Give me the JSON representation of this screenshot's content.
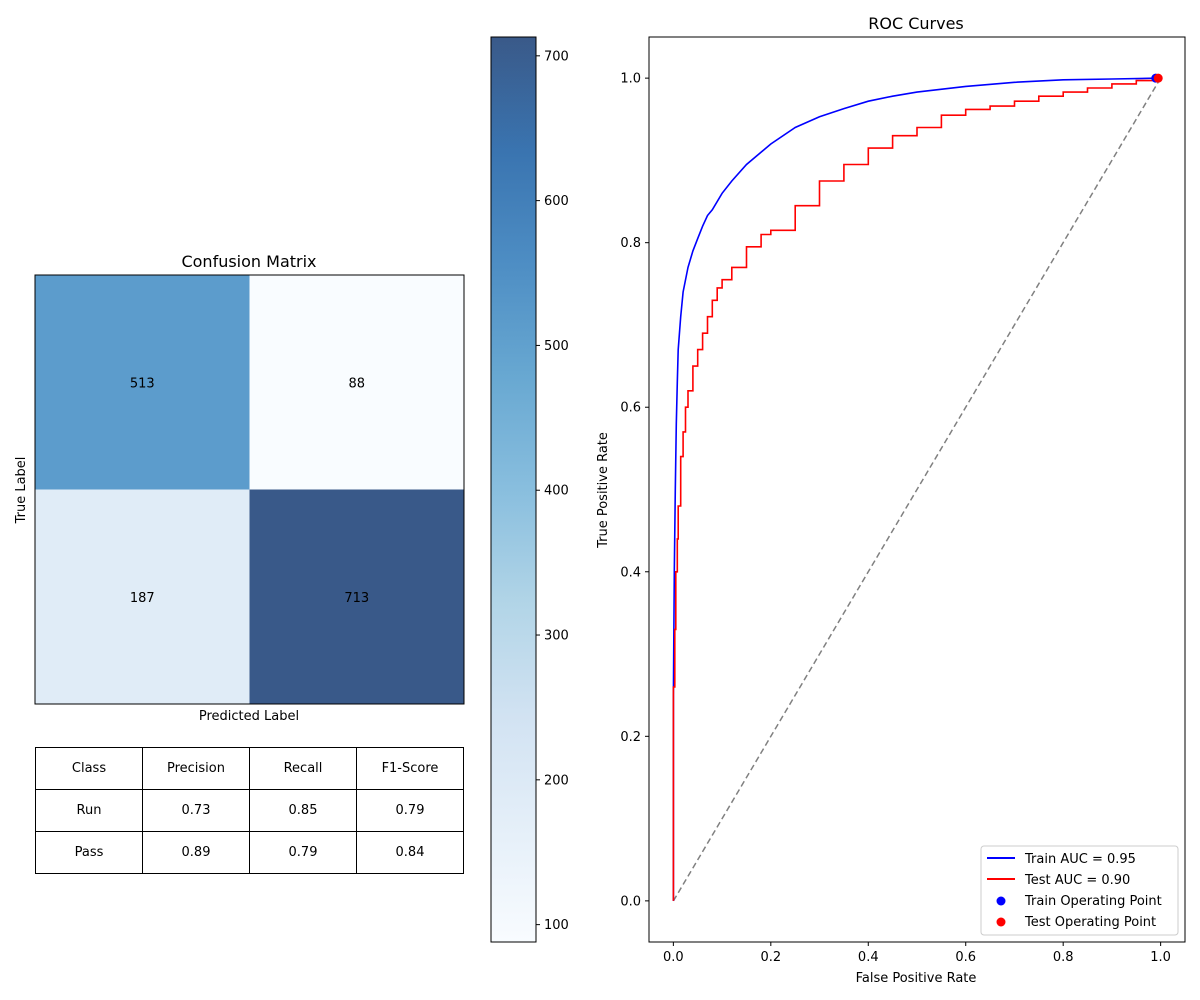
{
  "chart_data": [
    {
      "type": "heatmap",
      "title": "Confusion Matrix",
      "xlabel": "Predicted Label",
      "ylabel": "True Label",
      "matrix": [
        [
          513,
          88
        ],
        [
          187,
          713
        ]
      ],
      "colorbar": {
        "min": 88,
        "max": 713,
        "ticks": [
          100,
          200,
          300,
          400,
          500,
          600,
          700
        ]
      },
      "colormap": [
        "#f7fbff",
        "#deebf7",
        "#c6dbef",
        "#9ecae1",
        "#6baed6",
        "#4292c6",
        "#2171b5",
        "#08519c",
        "#08306b"
      ],
      "cell_alpha": 0.8,
      "metrics_table": {
        "header": [
          "Class",
          "Precision",
          "Recall",
          "F1-Score"
        ],
        "rows": [
          [
            "Run",
            "0.73",
            "0.85",
            "0.79"
          ],
          [
            "Pass",
            "0.89",
            "0.79",
            "0.84"
          ]
        ]
      }
    },
    {
      "type": "line",
      "title": "ROC Curves",
      "xlabel": "False Positive Rate",
      "ylabel": "True Positive Rate",
      "xlim": [
        -0.05,
        1.05
      ],
      "ylim": [
        -0.05,
        1.05
      ],
      "xticks": [
        "0.0",
        "0.2",
        "0.4",
        "0.6",
        "0.8",
        "1.0"
      ],
      "yticks": [
        "0.0",
        "0.2",
        "0.4",
        "0.6",
        "0.8",
        "1.0"
      ],
      "grid": false,
      "legend_position": "bottom-right",
      "series": [
        {
          "name": "Train AUC = 0.95",
          "color": "#0000ff",
          "x": [
            0,
            0,
            0.002,
            0.004,
            0.006,
            0.008,
            0.01,
            0.015,
            0.02,
            0.03,
            0.04,
            0.05,
            0.06,
            0.07,
            0.08,
            0.1,
            0.12,
            0.15,
            0.2,
            0.25,
            0.3,
            0.35,
            0.4,
            0.45,
            0.5,
            0.6,
            0.7,
            0.8,
            0.9,
            1.0
          ],
          "y": [
            0,
            0.25,
            0.4,
            0.5,
            0.58,
            0.63,
            0.67,
            0.71,
            0.74,
            0.77,
            0.79,
            0.805,
            0.82,
            0.833,
            0.84,
            0.86,
            0.875,
            0.895,
            0.92,
            0.94,
            0.953,
            0.963,
            0.972,
            0.978,
            0.983,
            0.99,
            0.995,
            0.998,
            0.999,
            1.0
          ]
        },
        {
          "name": "Test AUC = 0.90",
          "color": "#ff0000",
          "step": true,
          "x": [
            0,
            0,
            0.003,
            0.005,
            0.008,
            0.01,
            0.015,
            0.02,
            0.025,
            0.03,
            0.04,
            0.05,
            0.06,
            0.07,
            0.08,
            0.09,
            0.1,
            0.12,
            0.15,
            0.18,
            0.2,
            0.25,
            0.3,
            0.35,
            0.4,
            0.45,
            0.5,
            0.55,
            0.6,
            0.65,
            0.7,
            0.75,
            0.8,
            0.85,
            0.9,
            0.95,
            1.0
          ],
          "y": [
            0,
            0.26,
            0.33,
            0.4,
            0.44,
            0.48,
            0.54,
            0.57,
            0.6,
            0.62,
            0.65,
            0.67,
            0.69,
            0.71,
            0.73,
            0.745,
            0.755,
            0.77,
            0.795,
            0.81,
            0.815,
            0.845,
            0.875,
            0.895,
            0.915,
            0.93,
            0.94,
            0.955,
            0.962,
            0.966,
            0.972,
            0.978,
            0.983,
            0.988,
            0.993,
            0.997,
            1.0
          ]
        },
        {
          "name": "",
          "color": "#808080",
          "dashed": true,
          "x": [
            0,
            1
          ],
          "y": [
            0,
            1
          ]
        }
      ],
      "points": [
        {
          "name": "Train Operating Point",
          "color": "#0000ff",
          "x": 0.99,
          "y": 1.0
        },
        {
          "name": "Test Operating Point",
          "color": "#ff0000",
          "x": 0.995,
          "y": 1.0
        }
      ]
    }
  ]
}
